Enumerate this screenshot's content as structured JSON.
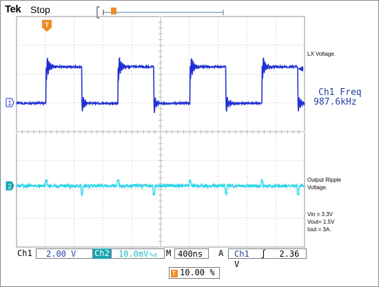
{
  "header": {
    "brand": "Tek",
    "status": "Stop"
  },
  "measurement": {
    "label": "Ch1 Freq",
    "value": "987.6kHz"
  },
  "traces": {
    "ch1": {
      "marker": "1",
      "name": "LX Voltage.",
      "color": "#1f2fd0"
    },
    "ch2": {
      "marker": "2",
      "name_line1": "Output Ripple",
      "name_line2": "Voltage.",
      "color": "#2ad4e8"
    }
  },
  "conditions": [
    "Vin = 3.3V",
    "Vout= 1.5V",
    "Iout = 3A."
  ],
  "bottom_bar": {
    "ch1_label": "Ch1",
    "ch1_scale": "2.00 V",
    "ch2_label": "Ch2",
    "ch2_scale": "10.0mV",
    "bw_symbol": "∿",
    "bw_sub": "B",
    "timebase_prefix": "M",
    "timebase": "400ns",
    "acq_mode": "A",
    "trigger_source": "Ch1",
    "trigger_slope": "∫",
    "trigger_level": "2.36 V"
  },
  "trigger_position": {
    "icon_label": "T",
    "value": "10.00 %"
  },
  "colors": {
    "grid": "#b8b8b8",
    "accent_orange": "#f08a24",
    "ch1_text": "#1f3fa0",
    "ch2_badge": "#1aa3b0"
  }
}
